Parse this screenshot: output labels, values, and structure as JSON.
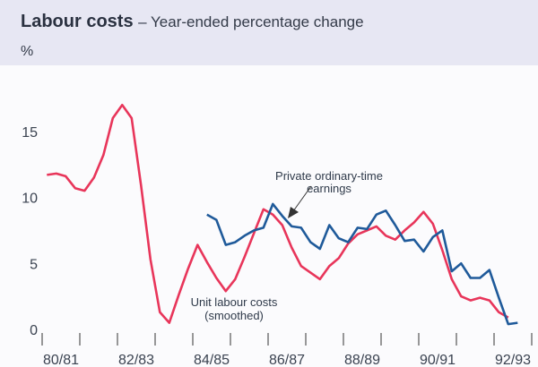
{
  "chart_data": {
    "type": "line",
    "title": "Labour costs",
    "subtitle": "Year-ended percentage change",
    "ylabel": "%",
    "xlabel": "",
    "ylim": [
      0,
      18
    ],
    "yticks": [
      "0",
      "5",
      "10",
      "15"
    ],
    "xtick_labels": [
      "80/81",
      "82/83",
      "84/85",
      "86/87",
      "88/89",
      "90/91",
      "92/93"
    ],
    "grid": false,
    "colors": {
      "unit_labour_costs": "#e8355a",
      "private_earnings": "#1f5a9a"
    },
    "x": [
      "Sep-80",
      "Dec-80",
      "Mar-81",
      "Jun-81",
      "Sep-81",
      "Dec-81",
      "Mar-82",
      "Jun-82",
      "Sep-82",
      "Dec-82",
      "Mar-83",
      "Jun-83",
      "Sep-83",
      "Dec-83",
      "Mar-84",
      "Jun-84",
      "Sep-84",
      "Dec-84",
      "Mar-85",
      "Jun-85",
      "Sep-85",
      "Dec-85",
      "Mar-86",
      "Jun-86",
      "Sep-86",
      "Dec-86",
      "Mar-87",
      "Jun-87",
      "Sep-87",
      "Dec-87",
      "Mar-88",
      "Jun-88",
      "Sep-88",
      "Dec-88",
      "Mar-89",
      "Jun-89",
      "Sep-89",
      "Dec-89",
      "Mar-90",
      "Jun-90",
      "Sep-90",
      "Dec-90",
      "Mar-91",
      "Jun-91",
      "Sep-91",
      "Dec-91",
      "Mar-92",
      "Jun-92",
      "Sep-92",
      "Dec-92",
      "Mar-93"
    ],
    "series": [
      {
        "name": "Unit labour costs (smoothed)",
        "label_lines": [
          "Unit labour costs",
          "(smoothed)"
        ],
        "color": "#e8355a",
        "values": [
          11.7,
          11.8,
          11.6,
          10.7,
          10.5,
          11.5,
          13.2,
          16.0,
          17.0,
          16.0,
          10.9,
          5.3,
          1.3,
          0.5,
          2.6,
          4.6,
          6.4,
          5.1,
          3.9,
          2.9,
          3.8,
          5.5,
          7.3,
          9.1,
          8.7,
          7.9,
          6.2,
          4.8,
          4.3,
          3.8,
          4.8,
          5.4,
          6.5,
          7.2,
          7.5,
          7.8,
          7.1,
          6.8,
          7.5,
          8.1,
          8.9,
          8.0,
          6.0,
          3.8,
          2.5,
          2.2,
          2.4,
          2.2,
          1.3,
          0.9,
          null
        ]
      },
      {
        "name": "Private ordinary-time earnings",
        "label_lines": [
          "Private ordinary-time",
          "earnings"
        ],
        "color": "#1f5a9a",
        "values": [
          null,
          null,
          null,
          null,
          null,
          null,
          null,
          null,
          null,
          null,
          null,
          null,
          null,
          null,
          null,
          null,
          null,
          8.7,
          8.3,
          6.4,
          6.6,
          7.1,
          7.5,
          7.7,
          9.5,
          8.6,
          7.8,
          7.7,
          6.6,
          6.1,
          7.9,
          6.9,
          6.6,
          7.7,
          7.6,
          8.7,
          9.0,
          7.9,
          6.7,
          6.8,
          5.9,
          7.0,
          7.5,
          4.4,
          5.0,
          3.9,
          3.9,
          4.5,
          2.4,
          0.4,
          0.5
        ]
      }
    ]
  }
}
